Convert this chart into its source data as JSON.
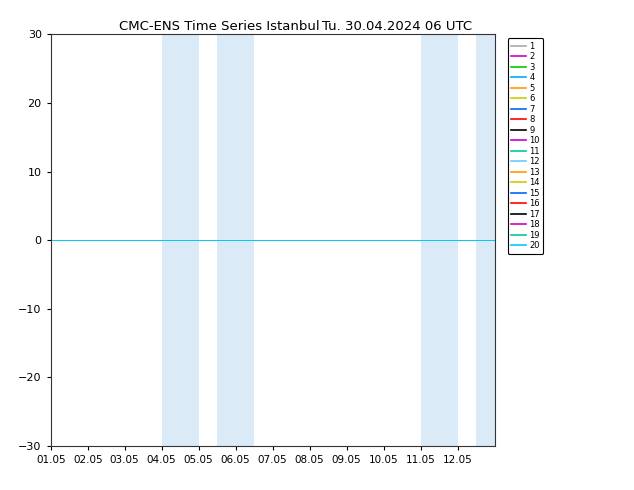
{
  "title_left": "CMC-ENS Time Series Istanbul",
  "title_right": "Tu. 30.04.2024 06 UTC",
  "ylim": [
    -30,
    30
  ],
  "yticks": [
    -30,
    -20,
    -10,
    0,
    10,
    20,
    30
  ],
  "xtick_labels": [
    "01.05",
    "02.05",
    "03.05",
    "04.05",
    "05.05",
    "06.05",
    "07.05",
    "08.05",
    "09.05",
    "10.05",
    "11.05",
    "12.05"
  ],
  "shaded_regions": [
    [
      3.0,
      4.0
    ],
    [
      4.5,
      5.5
    ],
    [
      10.0,
      11.0
    ],
    [
      11.5,
      12.5
    ]
  ],
  "shaded_color": "#daeaf7",
  "line_y": 0,
  "line_colors": [
    "#aaaaaa",
    "#cc00cc",
    "#00cc00",
    "#00aaff",
    "#ff9900",
    "#cccc00",
    "#0066ff",
    "#ff0000",
    "#000000",
    "#cc00cc",
    "#00cc99",
    "#66ccff",
    "#ff9900",
    "#cccc00",
    "#0066ff",
    "#ff0000",
    "#000000",
    "#cc00cc",
    "#00cc99",
    "#00ccff"
  ],
  "legend_labels": [
    "1",
    "2",
    "3",
    "4",
    "5",
    "6",
    "7",
    "8",
    "9",
    "10",
    "11",
    "12",
    "13",
    "14",
    "15",
    "16",
    "17",
    "18",
    "19",
    "20"
  ],
  "background_color": "#ffffff",
  "xlim": [
    0,
    12
  ],
  "n_xticks": 12
}
